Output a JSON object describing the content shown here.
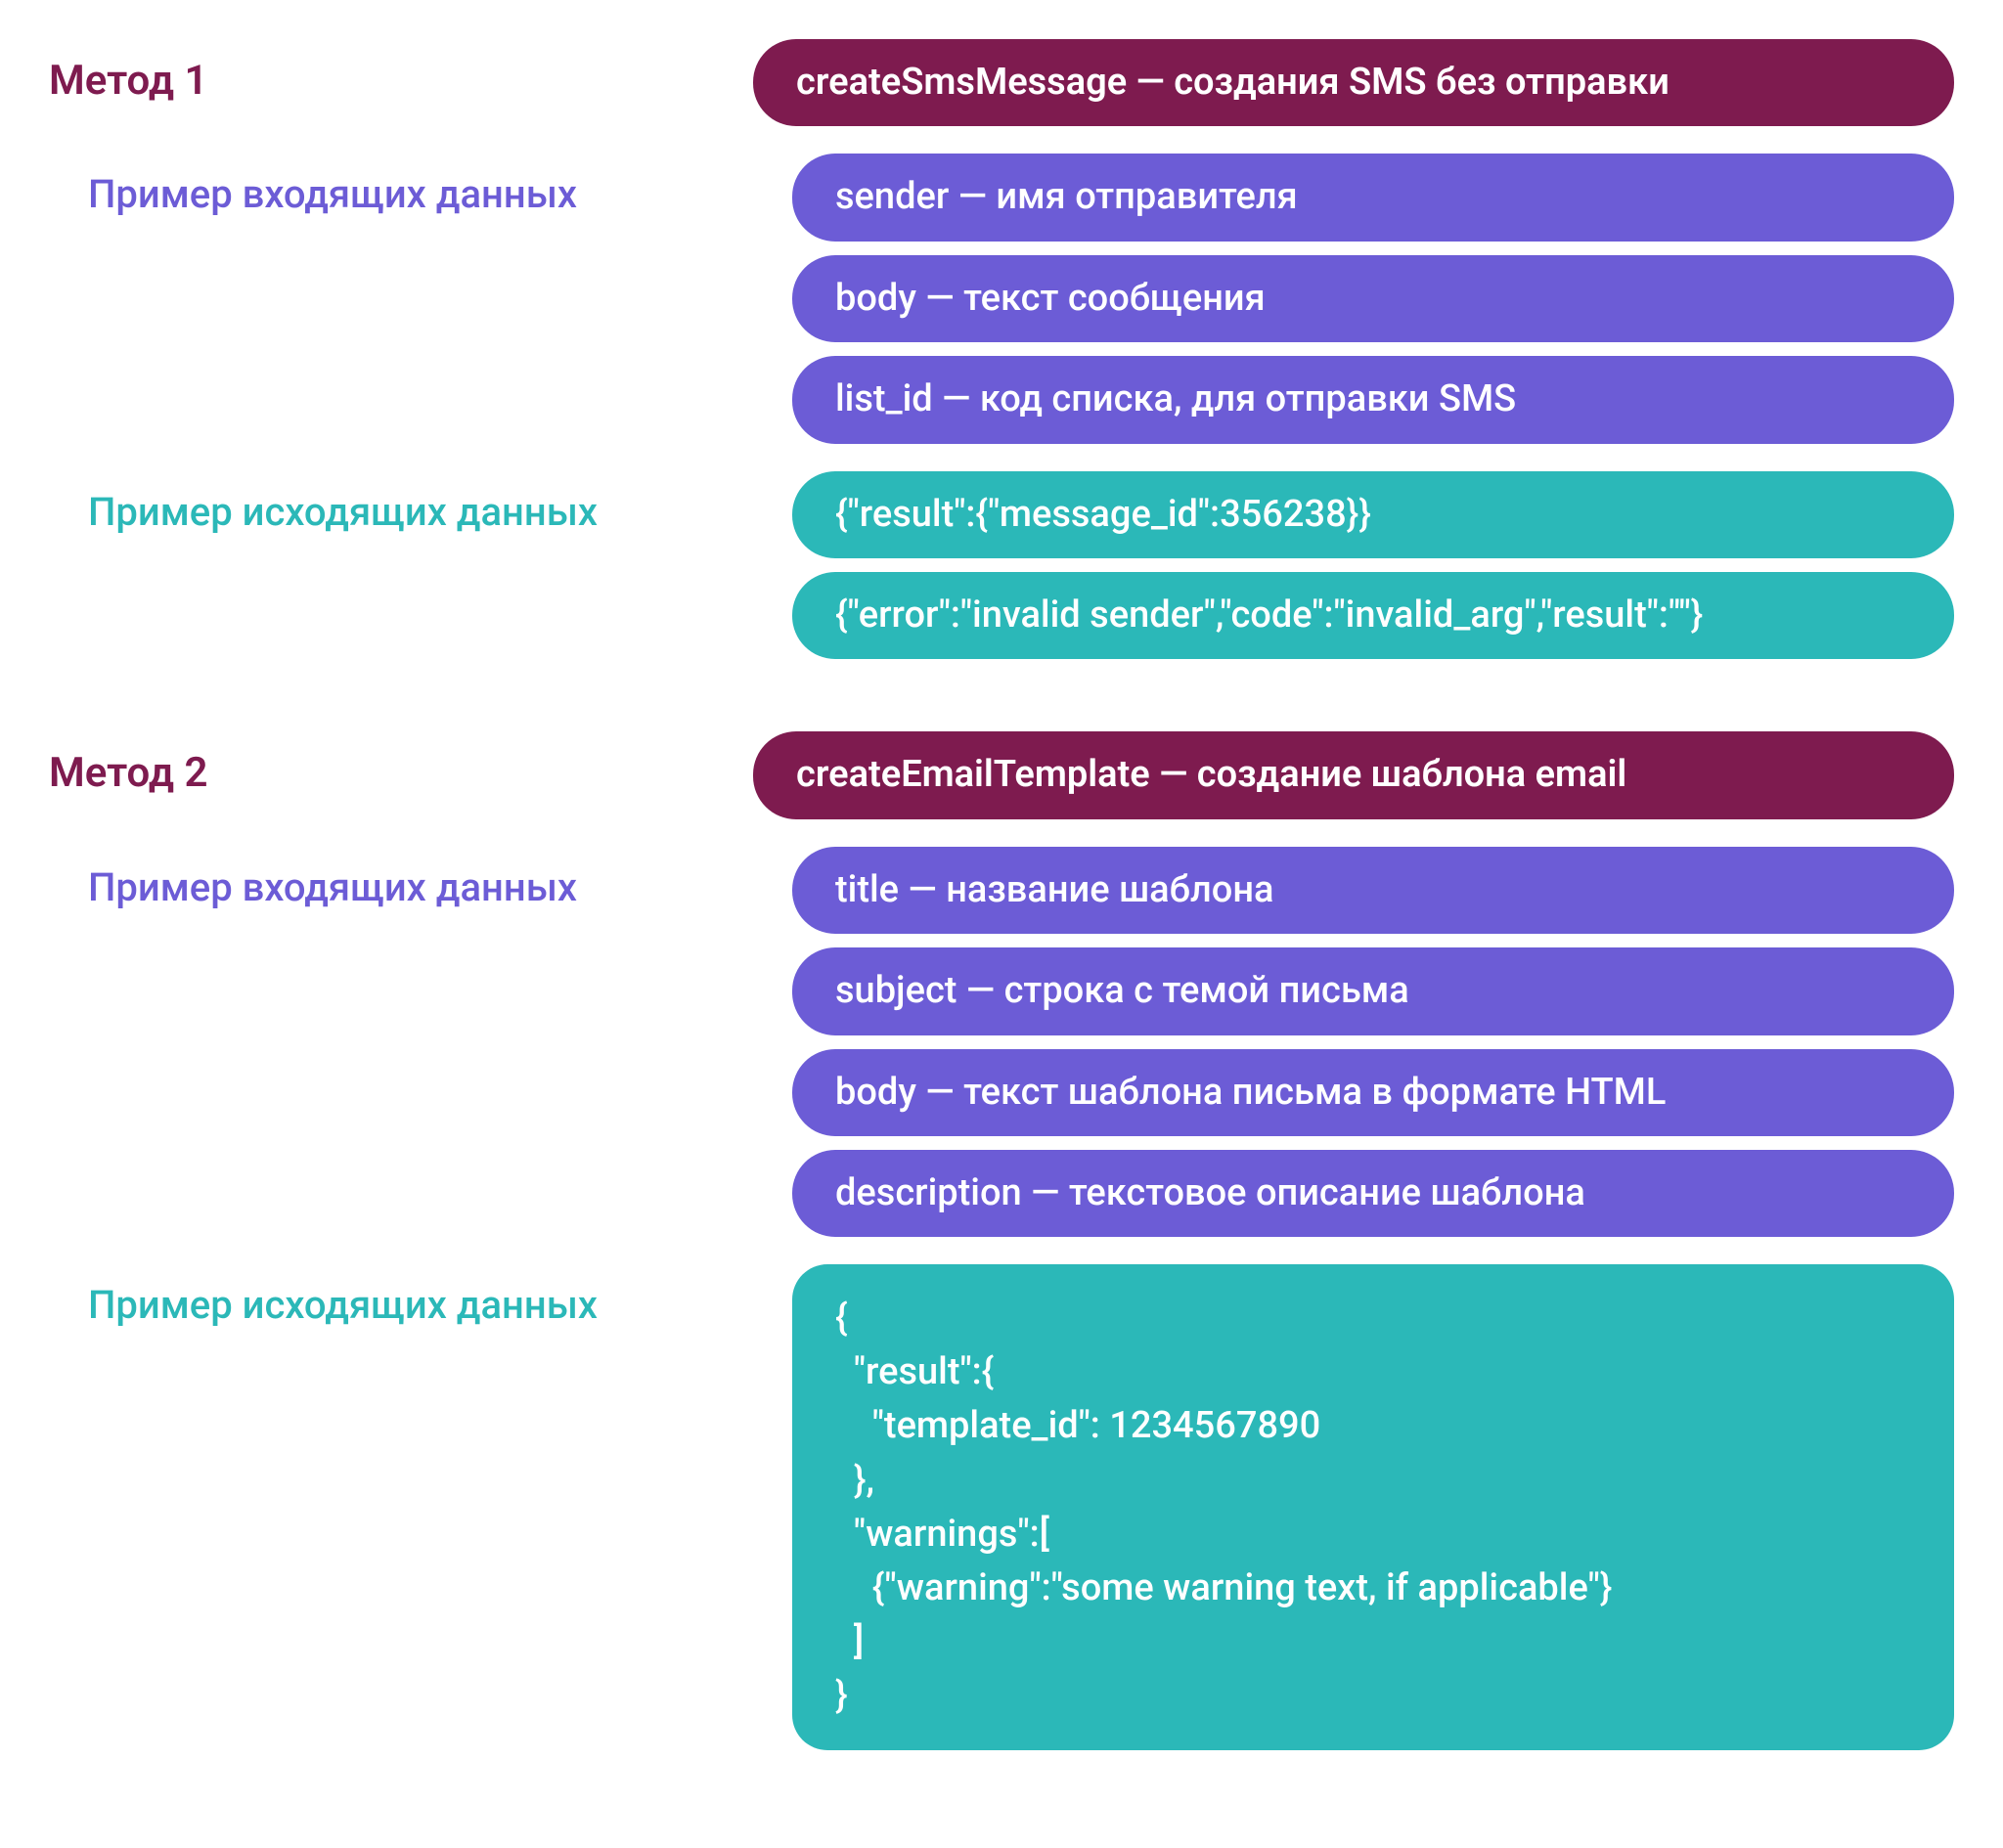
{
  "colors": {
    "method_title": "#7e1b4f",
    "input_label": "#6c5cd6",
    "output_label": "#2bb8b8",
    "method_pill_bg": "#7e1b4f",
    "method_pill_text": "#ffffff",
    "input_pill_bg": "#6c5cd6",
    "input_pill_text": "#ffffff",
    "output_pill_bg": "#2bb8b8",
    "output_pill_text": "#ffffff"
  },
  "methods": [
    {
      "title": "Метод 1",
      "header": "createSmsMessage — создания SMS без отправки",
      "input_label": "Пример входящих данных",
      "inputs": [
        "sender — имя отправителя",
        "body — текст сообщения",
        "list_id — код списка, для отправки SMS"
      ],
      "output_label": "Пример исходящих данных",
      "outputs": [
        "{\"result\":{\"message_id\":356238}}",
        "{\"error\":\"invalid sender\",\"code\":\"invalid_arg\",\"result\":\"\"}"
      ],
      "output_block": null
    },
    {
      "title": "Метод 2",
      "header": "createEmailTemplate — создание шаблона email",
      "input_label": "Пример входящих данных",
      "inputs": [
        "title — название шаблона",
        "subject — строка с темой письма",
        "body — текст шаблона письма в формате HTML",
        "description — текстовое описание шаблона"
      ],
      "output_label": "Пример исходящих данных",
      "outputs": [],
      "output_block": "{\n  \"result\":{\n    \"template_id\": 1234567890\n  },\n  \"warnings\":[\n    {\"warning\":\"some warning text, if applicable\"}\n  ]\n}"
    }
  ]
}
